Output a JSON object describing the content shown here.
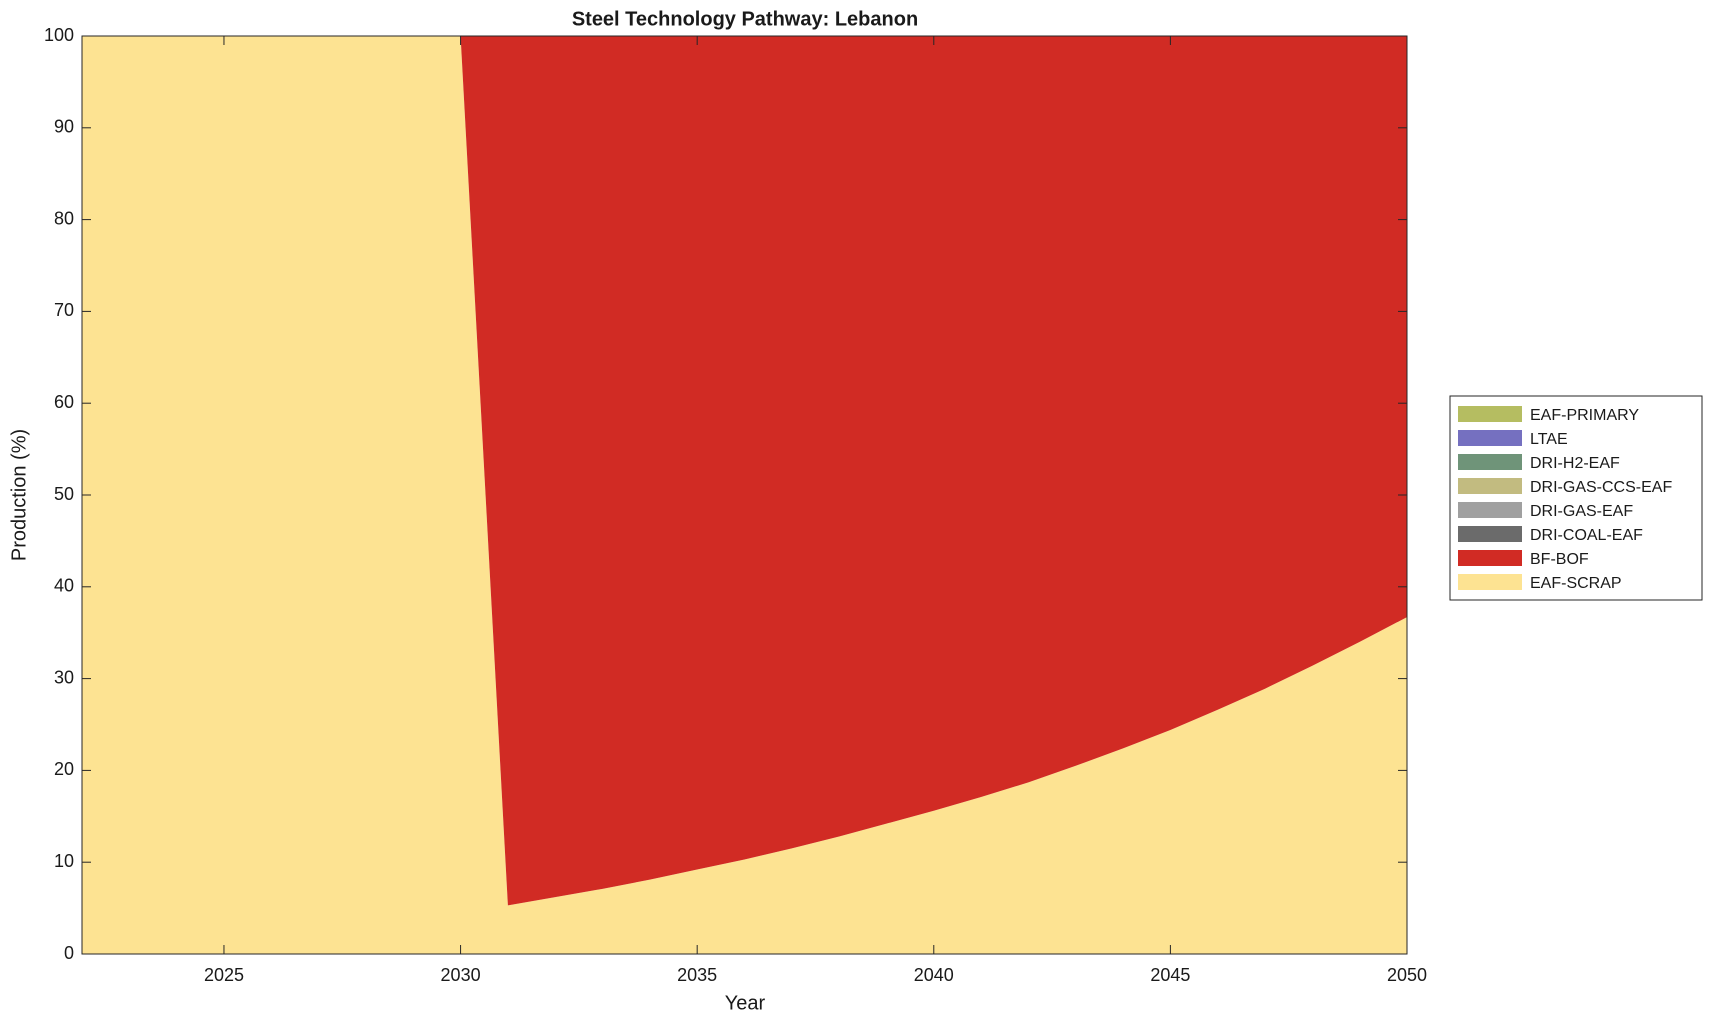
{
  "chart_data": {
    "type": "stacked-area",
    "title": "Steel Technology Pathway: Lebanon",
    "x_label": "Year",
    "y_label": "Production (%)",
    "x": [
      2022,
      2023,
      2024,
      2025,
      2026,
      2027,
      2028,
      2029,
      2030,
      2031,
      2032,
      2033,
      2034,
      2035,
      2036,
      2037,
      2038,
      2039,
      2040,
      2041,
      2042,
      2043,
      2044,
      2045,
      2046,
      2047,
      2048,
      2049,
      2050
    ],
    "xlim": [
      2022,
      2050
    ],
    "xticks": [
      2025,
      2030,
      2035,
      2040,
      2045,
      2050
    ],
    "ylim": [
      0,
      100
    ],
    "yticks": [
      0,
      10,
      20,
      30,
      40,
      50,
      60,
      70,
      80,
      90,
      100
    ],
    "legend_position": "outside-right",
    "series": [
      {
        "name": "EAF-SCRAP",
        "color": "#fde392",
        "values": [
          100,
          100,
          100,
          100,
          100,
          100,
          100,
          100,
          100,
          5.3,
          6.2,
          7.1,
          8.1,
          9.2,
          10.3,
          11.5,
          12.8,
          14.2,
          15.6,
          17.1,
          18.7,
          20.5,
          22.4,
          24.4,
          26.6,
          28.9,
          31.4,
          34.0,
          36.7
        ]
      },
      {
        "name": "BF-BOF",
        "color": "#d12b24",
        "values": [
          0,
          0,
          0,
          0,
          0,
          0,
          0,
          0,
          0,
          94.7,
          93.8,
          92.9,
          91.9,
          90.8,
          89.7,
          88.5,
          87.2,
          85.8,
          84.4,
          82.9,
          81.3,
          79.5,
          77.6,
          75.6,
          73.4,
          71.1,
          68.6,
          66.0,
          63.3
        ]
      },
      {
        "name": "DRI-COAL-EAF",
        "color": "#6b6b6b",
        "values": [
          0,
          0,
          0,
          0,
          0,
          0,
          0,
          0,
          0,
          0,
          0,
          0,
          0,
          0,
          0,
          0,
          0,
          0,
          0,
          0,
          0,
          0,
          0,
          0,
          0,
          0,
          0,
          0,
          0
        ]
      },
      {
        "name": "DRI-GAS-EAF",
        "color": "#a0a0a0",
        "values": [
          0,
          0,
          0,
          0,
          0,
          0,
          0,
          0,
          0,
          0,
          0,
          0,
          0,
          0,
          0,
          0,
          0,
          0,
          0,
          0,
          0,
          0,
          0,
          0,
          0,
          0,
          0,
          0,
          0
        ]
      },
      {
        "name": "DRI-GAS-CCS-EAF",
        "color": "#c2bb80",
        "values": [
          0,
          0,
          0,
          0,
          0,
          0,
          0,
          0,
          0,
          0,
          0,
          0,
          0,
          0,
          0,
          0,
          0,
          0,
          0,
          0,
          0,
          0,
          0,
          0,
          0,
          0,
          0,
          0,
          0
        ]
      },
      {
        "name": "DRI-H2-EAF",
        "color": "#6f9479",
        "values": [
          0,
          0,
          0,
          0,
          0,
          0,
          0,
          0,
          0,
          0,
          0,
          0,
          0,
          0,
          0,
          0,
          0,
          0,
          0,
          0,
          0,
          0,
          0,
          0,
          0,
          0,
          0,
          0,
          0
        ]
      },
      {
        "name": "LTAE",
        "color": "#7570c0",
        "values": [
          0,
          0,
          0,
          0,
          0,
          0,
          0,
          0,
          0,
          0,
          0,
          0,
          0,
          0,
          0,
          0,
          0,
          0,
          0,
          0,
          0,
          0,
          0,
          0,
          0,
          0,
          0,
          0,
          0
        ]
      },
      {
        "name": "EAF-PRIMARY",
        "color": "#b5bd61",
        "values": [
          0,
          0,
          0,
          0,
          0,
          0,
          0,
          0,
          0,
          0,
          0,
          0,
          0,
          0,
          0,
          0,
          0,
          0,
          0,
          0,
          0,
          0,
          0,
          0,
          0,
          0,
          0,
          0,
          0
        ]
      }
    ]
  }
}
